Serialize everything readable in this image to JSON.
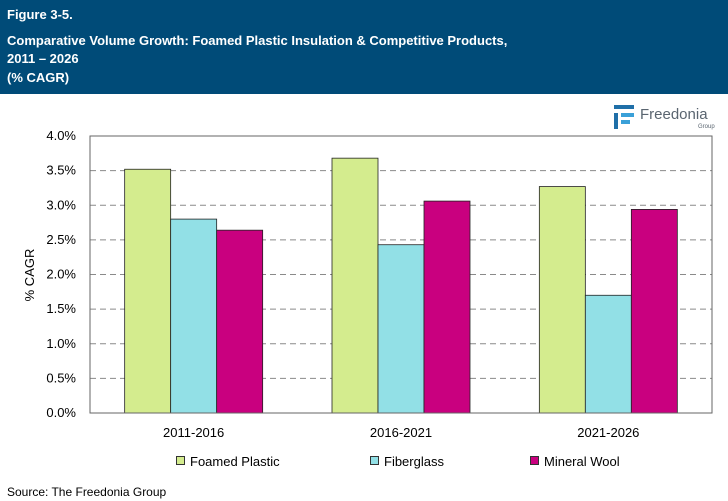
{
  "header": {
    "figure_label": "Figure 3-5.",
    "title_line1": "Comparative Volume Growth: Foamed Plastic Insulation & Competitive Products,",
    "title_line2": "2011 – 2026",
    "title_line3": "(% CAGR)"
  },
  "logo": {
    "brand": "Freedonia",
    "sub": "Group",
    "icon": "freedonia-logo-icon"
  },
  "source": "Source: The Freedonia Group",
  "colors": {
    "header_bg": "#004b78",
    "foamed_plastic": "#d4ec8e",
    "fiberglass": "#92e0e6",
    "mineral_wool": "#c9007f"
  },
  "chart_data": {
    "type": "bar",
    "categories": [
      "2011-2016",
      "2016-2021",
      "2021-2026"
    ],
    "series": [
      {
        "name": "Foamed Plastic",
        "values": [
          3.52,
          3.68,
          3.27
        ],
        "color": "#d4ec8e"
      },
      {
        "name": "Fiberglass",
        "values": [
          2.8,
          2.43,
          1.7
        ],
        "color": "#92e0e6"
      },
      {
        "name": "Mineral Wool",
        "values": [
          2.64,
          3.06,
          2.94
        ],
        "color": "#c9007f"
      }
    ],
    "ylabel": "% CAGR",
    "ylim": [
      0,
      4.0
    ],
    "yticks": [
      "0.0%",
      "0.5%",
      "1.0%",
      "1.5%",
      "2.0%",
      "2.5%",
      "3.0%",
      "3.5%",
      "4.0%"
    ],
    "grid": "horizontal dashed",
    "legend": "bottom"
  }
}
